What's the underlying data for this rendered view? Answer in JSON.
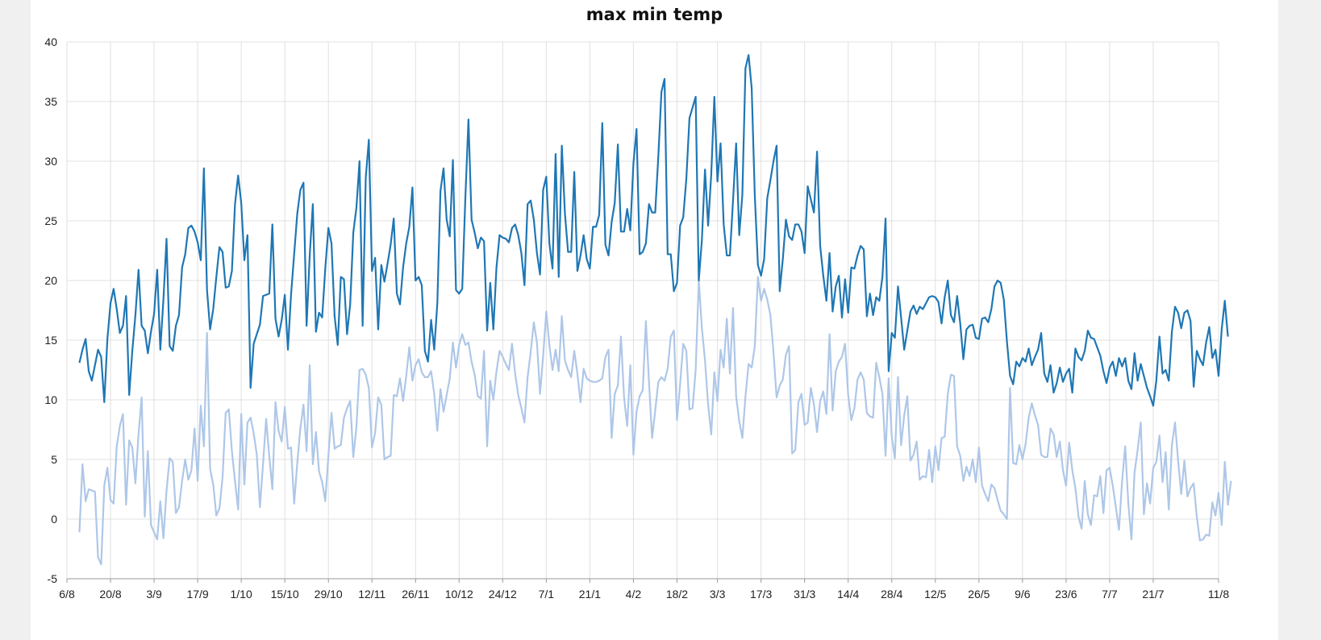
{
  "chart_data": {
    "type": "line",
    "title": "max min temp",
    "xlabel": "",
    "ylabel": "",
    "x_range": [
      "2021-08-06",
      "2022-08-11"
    ],
    "ylim": [
      -5,
      40
    ],
    "y_ticks": [
      -5,
      0,
      5,
      10,
      15,
      20,
      25,
      30,
      35,
      40
    ],
    "x_ticks": [
      {
        "date": "2021-08-06",
        "label": "6/8"
      },
      {
        "date": "2021-08-20",
        "label": "20/8"
      },
      {
        "date": "2021-09-03",
        "label": "3/9"
      },
      {
        "date": "2021-09-17",
        "label": "17/9"
      },
      {
        "date": "2021-10-01",
        "label": "1/10"
      },
      {
        "date": "2021-10-15",
        "label": "15/10"
      },
      {
        "date": "2021-10-29",
        "label": "29/10"
      },
      {
        "date": "2021-11-12",
        "label": "12/11"
      },
      {
        "date": "2021-11-26",
        "label": "26/11"
      },
      {
        "date": "2021-12-10",
        "label": "10/12"
      },
      {
        "date": "2021-12-24",
        "label": "24/12"
      },
      {
        "date": "2022-01-07",
        "label": "7/1"
      },
      {
        "date": "2022-01-21",
        "label": "21/1"
      },
      {
        "date": "2022-02-04",
        "label": "4/2"
      },
      {
        "date": "2022-02-18",
        "label": "18/2"
      },
      {
        "date": "2022-03-03",
        "label": "3/3"
      },
      {
        "date": "2022-03-17",
        "label": "17/3"
      },
      {
        "date": "2022-03-31",
        "label": "31/3"
      },
      {
        "date": "2022-04-14",
        "label": "14/4"
      },
      {
        "date": "2022-04-28",
        "label": "28/4"
      },
      {
        "date": "2022-05-12",
        "label": "12/5"
      },
      {
        "date": "2022-05-26",
        "label": "26/5"
      },
      {
        "date": "2022-06-09",
        "label": "9/6"
      },
      {
        "date": "2022-06-23",
        "label": "23/6"
      },
      {
        "date": "2022-07-07",
        "label": "7/7"
      },
      {
        "date": "2022-07-21",
        "label": "21/7"
      },
      {
        "date": "2022-08-11",
        "label": "11/8"
      }
    ],
    "grid": true,
    "legend": "none",
    "series": [
      {
        "color": "#1f77b4",
        "start_date": "2021-08-10",
        "values": [
          13.1,
          14.2,
          15.1,
          12.4,
          11.6,
          12.9,
          14.2,
          13.6,
          9.8,
          15.1,
          18.1,
          19.3,
          17.6,
          15.6,
          16.2,
          18.7,
          10.4,
          14.1,
          17.1,
          20.9,
          16.2,
          15.8,
          13.9,
          15.7,
          17.2,
          20.9,
          14.2,
          18.4,
          23.5,
          14.5,
          14.1,
          16.2,
          17.1,
          21.1,
          22.2,
          24.4,
          24.6,
          24.1,
          23.2,
          21.7,
          29.4,
          19.2,
          15.9,
          17.6,
          20.3,
          22.8,
          22.4,
          19.4,
          19.5,
          20.8,
          26.4,
          28.8,
          26.5,
          21.7,
          23.8,
          11.0,
          14.7,
          15.5,
          16.3,
          18.7,
          18.8,
          18.9,
          24.7,
          16.8,
          15.3,
          16.7,
          18.8,
          14.2,
          18.8,
          22.2,
          25.6,
          27.6,
          28.2,
          16.2,
          22.1,
          26.4,
          15.7,
          17.3,
          16.9,
          21.0,
          24.4,
          23.1,
          17.0,
          14.6,
          20.3,
          20.1,
          15.5,
          18.0,
          24.0,
          26.1,
          30.0,
          16.2,
          28.6,
          31.8,
          20.8,
          21.9,
          15.9,
          21.3,
          19.9,
          21.4,
          23.0,
          25.2,
          18.9,
          18.0,
          21.1,
          23.1,
          24.5,
          27.8,
          20.0,
          20.3,
          19.6,
          14.1,
          13.2,
          16.7,
          14.2,
          18.1,
          27.5,
          29.4,
          25.1,
          23.7,
          30.1,
          19.2,
          18.9,
          19.3,
          26.9,
          33.5,
          25.1,
          24.0,
          22.7,
          23.6,
          23.3,
          15.8,
          19.8,
          15.9,
          21.1,
          23.8,
          23.6,
          23.5,
          23.2,
          24.4,
          24.7,
          23.8,
          22.3,
          19.6,
          26.4,
          26.7,
          25.1,
          22.3,
          20.5,
          27.6,
          28.7,
          23.1,
          21.0,
          30.6,
          20.3,
          31.3,
          25.6,
          22.4,
          22.4,
          29.1,
          20.8,
          22.1,
          23.8,
          21.8,
          21.0,
          24.5,
          24.5,
          25.5,
          33.2,
          23.0,
          22.1,
          24.9,
          26.5,
          31.4,
          24.1,
          24.1,
          26.0,
          24.2,
          29.8,
          32.7,
          22.2,
          22.4,
          23.1,
          26.4,
          25.7,
          25.7,
          30.4,
          35.8,
          36.9,
          22.2,
          22.2,
          19.1,
          19.8,
          24.6,
          25.3,
          28.5,
          33.6,
          34.5,
          35.4,
          20.0,
          23.4,
          29.3,
          24.6,
          28.9,
          35.4,
          28.3,
          31.5,
          24.7,
          22.1,
          22.1,
          26.7,
          31.5,
          23.8,
          27.2,
          37.8,
          38.9,
          36.1,
          27.1,
          21.3,
          20.4,
          21.8,
          26.9,
          28.4,
          30.0,
          31.3,
          19.1,
          21.8,
          25.1,
          23.7,
          23.4,
          24.7,
          24.7,
          24.1,
          22.3,
          27.9,
          26.8,
          25.7,
          30.8,
          22.9,
          20.4,
          18.3,
          22.3,
          17.4,
          19.5,
          20.4,
          16.9,
          20.1,
          17.3,
          21.1,
          21.0,
          22.1,
          22.9,
          22.6,
          17.0,
          18.9,
          17.1,
          18.6,
          18.3,
          20.3,
          25.2,
          12.4,
          15.6,
          15.2,
          19.5,
          16.9,
          14.2,
          15.8,
          17.4,
          17.9,
          17.2,
          17.8,
          17.6,
          18.1,
          18.6,
          18.7,
          18.6,
          18.2,
          16.4,
          18.6,
          20.0,
          17.1,
          16.5,
          18.7,
          16.4,
          13.4,
          15.9,
          16.2,
          16.3,
          15.2,
          15.1,
          16.8,
          16.9,
          16.5,
          17.6,
          19.5,
          20.0,
          19.8,
          18.4,
          14.9,
          12.0,
          11.3,
          13.2,
          12.8,
          13.5,
          13.2,
          14.3,
          12.9,
          13.6,
          14.2,
          15.6,
          12.2,
          11.5,
          12.9,
          10.6,
          11.4,
          12.7,
          11.5,
          12.2,
          12.6,
          10.6,
          14.3,
          13.6,
          13.3,
          14.1,
          15.8,
          15.2,
          15.1,
          14.4,
          13.7,
          12.4,
          11.4,
          12.7,
          13.2,
          12.0,
          13.5,
          12.8,
          13.5,
          11.6,
          10.9,
          13.9,
          11.6,
          13.0,
          12.0,
          11.0,
          10.3,
          9.5,
          11.6,
          15.3,
          12.2,
          12.5,
          11.6,
          15.7,
          17.8,
          17.3,
          16.0,
          17.3,
          17.5,
          16.6,
          11.1,
          14.1,
          13.4,
          12.9,
          14.8,
          16.1,
          13.5,
          14.2,
          12.0,
          15.9,
          18.3,
          15.3
        ]
      },
      {
        "color": "#aec7e8",
        "start_date": "2021-08-10",
        "values": [
          -1.1,
          4.6,
          1.5,
          2.5,
          2.4,
          2.3,
          -3.2,
          -3.8,
          2.8,
          4.3,
          1.6,
          1.3,
          6.1,
          7.8,
          8.8,
          1.2,
          6.6,
          6.0,
          3.0,
          7.1,
          10.2,
          0.2,
          5.7,
          -0.5,
          -1.1,
          -1.7,
          1.5,
          -1.6,
          2.4,
          5.1,
          4.8,
          0.5,
          1.0,
          3.2,
          5.0,
          3.3,
          4.1,
          7.6,
          3.2,
          9.5,
          6.1,
          15.6,
          4.2,
          2.9,
          0.3,
          0.9,
          3.5,
          8.9,
          9.2,
          5.7,
          3.2,
          0.8,
          8.8,
          2.9,
          8.1,
          8.5,
          7.2,
          5.4,
          1.0,
          4.6,
          8.4,
          5.3,
          2.5,
          9.8,
          7.4,
          6.5,
          9.4,
          5.9,
          6.0,
          1.3,
          4.7,
          7.6,
          9.6,
          5.7,
          12.9,
          4.6,
          7.3,
          4.0,
          3.1,
          1.5,
          5.3,
          8.9,
          5.9,
          6.1,
          6.2,
          8.5,
          9.3,
          9.9,
          5.2,
          7.7,
          12.5,
          12.6,
          12.1,
          11.0,
          6.0,
          7.2,
          10.2,
          9.6,
          5.0,
          5.2,
          5.3,
          10.4,
          10.3,
          11.8,
          9.9,
          12.0,
          14.4,
          11.6,
          12.9,
          13.4,
          12.3,
          11.9,
          11.9,
          12.4,
          10.5,
          7.4,
          10.9,
          9.0,
          10.4,
          11.8,
          14.8,
          12.7,
          14.6,
          15.5,
          14.6,
          14.8,
          13.2,
          12.1,
          10.3,
          10.1,
          14.1,
          6.1,
          11.6,
          10.0,
          12.4,
          14.1,
          13.6,
          13.0,
          12.5,
          14.7,
          12.2,
          10.4,
          9.3,
          8.1,
          11.9,
          14.0,
          16.5,
          14.8,
          10.5,
          13.7,
          17.4,
          14.6,
          12.5,
          14.2,
          12.4,
          17.0,
          13.3,
          12.5,
          11.9,
          14.1,
          12.2,
          9.8,
          12.6,
          11.8,
          11.6,
          11.5,
          11.5,
          11.6,
          11.8,
          13.6,
          14.2,
          6.8,
          10.5,
          11.2,
          15.3,
          10.2,
          7.8,
          12.9,
          5.4,
          9.0,
          10.3,
          10.8,
          16.6,
          11.5,
          6.8,
          9.1,
          11.5,
          11.9,
          11.6,
          12.6,
          15.3,
          15.8,
          8.3,
          11.3,
          14.7,
          14.1,
          9.2,
          9.3,
          12.5,
          20.0,
          16.0,
          13.3,
          9.6,
          7.1,
          12.3,
          9.9,
          14.2,
          12.7,
          16.8,
          12.2,
          17.7,
          10.3,
          8.2,
          6.8,
          10.3,
          13.0,
          12.7,
          14.5,
          20.3,
          18.3,
          19.3,
          18.4,
          17.1,
          14.0,
          10.2,
          11.2,
          11.7,
          13.8,
          14.5,
          5.5,
          5.8,
          9.8,
          10.5,
          7.9,
          8.1,
          11.0,
          9.6,
          7.3,
          9.9,
          10.7,
          8.8,
          15.5,
          9.1,
          12.4,
          13.2,
          13.6,
          14.7,
          10.4,
          8.3,
          9.3,
          11.7,
          12.3,
          11.7,
          8.9,
          8.6,
          8.5,
          13.1,
          11.9,
          10.5,
          5.3,
          11.8,
          6.9,
          5.1,
          11.9,
          6.2,
          8.7,
          10.3,
          4.9,
          5.4,
          6.5,
          3.3,
          3.6,
          3.5,
          5.8,
          3.1,
          6.1,
          4.1,
          6.8,
          6.9,
          10.5,
          12.1,
          12.0,
          6.1,
          5.3,
          3.2,
          4.4,
          3.6,
          5.0,
          3.1,
          6.0,
          2.8,
          2.1,
          1.5,
          2.9,
          2.6,
          1.6,
          0.7,
          0.4,
          0.0,
          11.0,
          4.7,
          4.6,
          6.2,
          5.0,
          6.3,
          8.5,
          9.7,
          8.7,
          7.9,
          5.4,
          5.2,
          5.2,
          7.6,
          7.1,
          5.2,
          6.5,
          4.1,
          2.8,
          6.4,
          4.1,
          2.6,
          0.2,
          -0.8,
          3.2,
          0.4,
          -0.5,
          2.0,
          1.9,
          3.6,
          0.5,
          4.1,
          4.3,
          2.8,
          1.0,
          -0.9,
          3.2,
          6.1,
          1.3,
          -1.7,
          3.9,
          5.8,
          8.1,
          0.4,
          3.0,
          1.3,
          4.3,
          4.8,
          7.0,
          3.1,
          5.6,
          0.8,
          6.2,
          8.1,
          4.9,
          2.1,
          4.9,
          1.9,
          2.6,
          3.0,
          0.2,
          -1.8,
          -1.7,
          -1.3,
          -1.4,
          1.4,
          0.3,
          2.2,
          -0.5,
          4.8,
          1.2,
          3.2
        ]
      }
    ]
  }
}
